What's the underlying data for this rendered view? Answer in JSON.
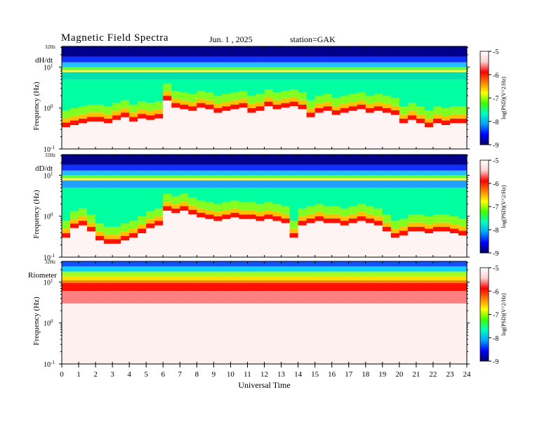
{
  "header": {
    "title": "Magnetic  Field  Spectra",
    "date": "Jun.  1  , 2025",
    "station": "station=GAK"
  },
  "colors": {
    "scale": [
      "#00007a",
      "#0000ff",
      "#00a0ff",
      "#00ffc0",
      "#40ff00",
      "#ffff00",
      "#ff8000",
      "#ff0000",
      "#ffe0e0",
      "#ffffff"
    ]
  },
  "chart_data": [
    {
      "type": "heatmap",
      "panel_label": "dH/dt",
      "top_label": "32Hz",
      "ylabel": "Frequency  (Hz)",
      "yticks": [
        {
          "base": "10",
          "exp": "1",
          "value": 10
        },
        {
          "base": "10",
          "exp": "0",
          "value": 1
        },
        {
          "base": "10",
          "exp": "-1",
          "value": 0.1
        }
      ],
      "ylim": [
        0.1,
        32
      ],
      "yscale": "log",
      "colorbar": {
        "label": "log(PSD)(V^2/Hz)",
        "ticks": [
          "-5",
          "-6",
          "-7",
          "-8",
          "-9"
        ],
        "range": [
          -9,
          -5
        ]
      },
      "knee_profile_hz": [
        0.4,
        0.45,
        0.5,
        0.55,
        0.55,
        0.5,
        0.6,
        0.7,
        0.55,
        0.65,
        0.6,
        0.65,
        1.8,
        1.2,
        1.1,
        1.0,
        1.2,
        1.1,
        0.9,
        1.0,
        1.1,
        1.2,
        0.9,
        1.0,
        1.3,
        1.1,
        1.2,
        1.3,
        1.1,
        0.7,
        0.9,
        1.0,
        0.8,
        0.9,
        1.0,
        1.1,
        0.9,
        1.0,
        0.9,
        0.8,
        0.5,
        0.6,
        0.5,
        0.4,
        0.5,
        0.45,
        0.5,
        0.5
      ]
    },
    {
      "type": "heatmap",
      "panel_label": "dD/dt",
      "top_label": "32Hz",
      "ylabel": "Frequency  (Hz)",
      "yticks": [
        {
          "base": "10",
          "exp": "1",
          "value": 10
        },
        {
          "base": "10",
          "exp": "0",
          "value": 1
        },
        {
          "base": "10",
          "exp": "-1",
          "value": 0.1
        }
      ],
      "ylim": [
        0.1,
        32
      ],
      "yscale": "log",
      "colorbar": {
        "label": "log(PSD)(V^2/Hz)",
        "ticks": [
          "-5",
          "-6",
          "-7",
          "-8",
          "-9"
        ],
        "range": [
          -9,
          -5
        ]
      },
      "knee_profile_hz": [
        0.35,
        0.6,
        0.7,
        0.5,
        0.3,
        0.25,
        0.25,
        0.3,
        0.35,
        0.45,
        0.6,
        0.7,
        1.6,
        1.4,
        1.6,
        1.3,
        1.1,
        1.0,
        0.9,
        1.0,
        1.1,
        1.0,
        1.0,
        0.9,
        1.0,
        0.9,
        0.8,
        0.35,
        0.7,
        0.8,
        0.9,
        0.8,
        0.8,
        0.7,
        0.8,
        0.9,
        0.8,
        0.7,
        0.5,
        0.35,
        0.4,
        0.5,
        0.5,
        0.45,
        0.5,
        0.5,
        0.45,
        0.4
      ]
    },
    {
      "type": "heatmap",
      "panel_label": "Riometer",
      "top_label": "32Hz",
      "ylabel": "Frequency  (Hz)",
      "yticks": [
        {
          "base": "10",
          "exp": "1",
          "value": 10
        },
        {
          "base": "10",
          "exp": "0",
          "value": 1
        },
        {
          "base": "10",
          "exp": "-1",
          "value": 0.1
        }
      ],
      "ylim": [
        0.1,
        32
      ],
      "yscale": "log",
      "colorbar": {
        "label": "log(PSD)(V^2/Hz)",
        "ticks": [
          "-5",
          "-6",
          "-7",
          "-8",
          "-9"
        ],
        "range": [
          -9,
          -5
        ]
      },
      "knee_profile_hz": [
        6,
        6,
        6,
        6,
        6,
        6,
        6,
        6,
        6,
        6,
        6,
        6,
        6,
        6,
        6,
        6,
        6,
        6,
        6,
        6,
        6,
        6,
        6,
        6,
        6,
        6,
        6,
        6,
        6,
        6,
        6,
        6,
        6,
        6,
        6,
        6,
        6,
        6,
        6,
        6,
        6,
        6,
        6,
        6,
        6,
        6,
        6,
        6
      ]
    }
  ],
  "xaxis": {
    "label": "Universal  Time",
    "ticks": [
      "0",
      "1",
      "2",
      "3",
      "4",
      "5",
      "6",
      "7",
      "8",
      "9",
      "10",
      "11",
      "12",
      "13",
      "14",
      "15",
      "16",
      "17",
      "18",
      "19",
      "20",
      "21",
      "22",
      "23",
      "24"
    ],
    "range": [
      0,
      24
    ]
  }
}
